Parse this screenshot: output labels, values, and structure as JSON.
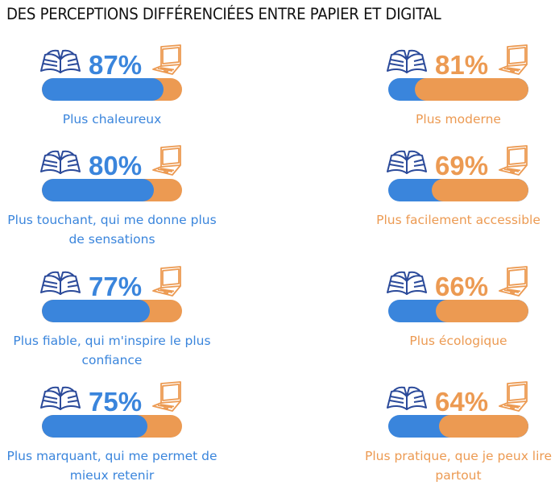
{
  "title": "DES PERCEPTIONS DIFFÉRENCIÉES ENTRE PAPIER ET DIGITAL",
  "colors": {
    "paper": "#3a85dc",
    "digital": "#ec9a52",
    "book_icon": "#2b4a9a"
  },
  "icons": {
    "paper": "open-book",
    "digital": "laptop"
  },
  "chart_data": {
    "type": "bar",
    "paper": [
      {
        "value": 87,
        "display": "87%",
        "label": "Plus chaleureux"
      },
      {
        "value": 80,
        "display": "80%",
        "label": "Plus touchant, qui me donne plus de sensations"
      },
      {
        "value": 77,
        "display": "77%",
        "label": "Plus fiable, qui m'inspire le plus confiance"
      },
      {
        "value": 75,
        "display": "75%",
        "label": "Plus marquant, qui me permet de mieux retenir"
      }
    ],
    "digital": [
      {
        "value": 81,
        "display": "81%",
        "label": "Plus moderne"
      },
      {
        "value": 69,
        "display": "69%",
        "label": "Plus facilement accessible"
      },
      {
        "value": 66,
        "display": "66%",
        "label": "Plus écologique"
      },
      {
        "value": 64,
        "display": "64%",
        "label": "Plus pratique, que je peux lire partout"
      }
    ]
  }
}
